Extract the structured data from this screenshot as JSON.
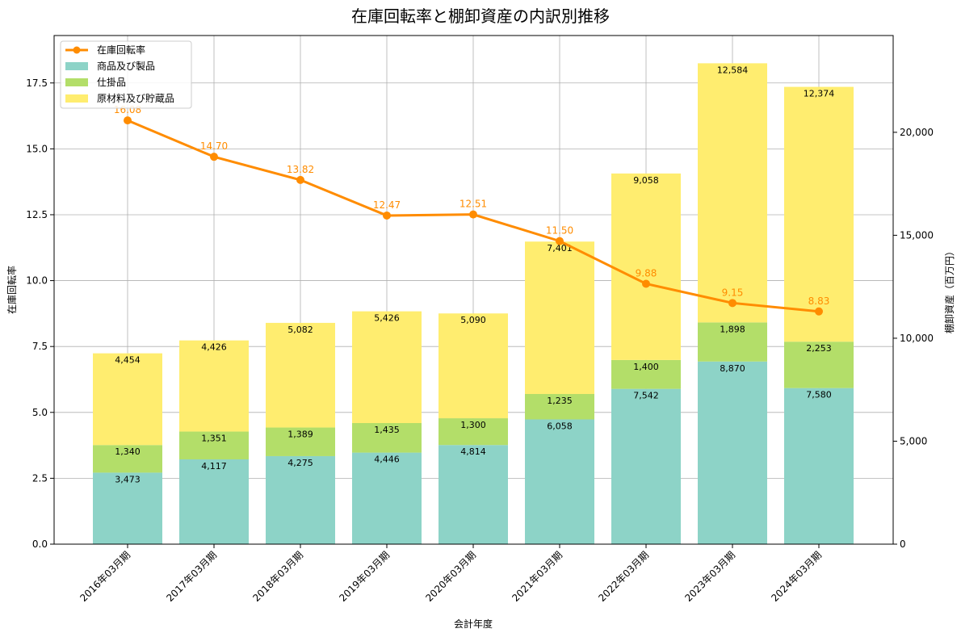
{
  "chart_data": {
    "type": "bar",
    "title": "在庫回転率と棚卸資産の内訳別推移",
    "xlabel": "会計年度",
    "ylabel_left": "在庫回転率",
    "ylabel_right": "棚卸資産（百万円）",
    "categories": [
      "2016年03月期",
      "2017年03月期",
      "2018年03月期",
      "2019年03月期",
      "2020年03月期",
      "2021年03月期",
      "2022年03月期",
      "2023年03月期",
      "2024年03月期"
    ],
    "stacked_series": [
      {
        "name": "商品及び製品",
        "color": "#8dd3c7",
        "values": [
          3473,
          4117,
          4275,
          4446,
          4814,
          6058,
          7542,
          8870,
          7580
        ]
      },
      {
        "name": "仕掛品",
        "color": "#b3de69",
        "values": [
          1340,
          1351,
          1389,
          1435,
          1300,
          1235,
          1400,
          1898,
          2253
        ]
      },
      {
        "name": "原材料及び貯蔵品",
        "color": "#ffed6f",
        "values": [
          4454,
          4426,
          5082,
          5426,
          5090,
          7401,
          9058,
          12584,
          12374
        ]
      }
    ],
    "line_series": {
      "name": "在庫回転率",
      "color": "#ff8c00",
      "values": [
        16.08,
        14.7,
        13.82,
        12.47,
        12.51,
        11.5,
        9.88,
        9.15,
        8.83
      ]
    },
    "left_axis": {
      "ylim": [
        0,
        19.3
      ],
      "ticks": [
        0.0,
        2.5,
        5.0,
        7.5,
        10.0,
        12.5,
        15.0,
        17.5
      ],
      "tick_labels": [
        "0.0",
        "2.5",
        "5.0",
        "7.5",
        "10.0",
        "12.5",
        "15.0",
        "17.5"
      ]
    },
    "right_axis": {
      "ylim": [
        0,
        24700
      ],
      "ticks": [
        0,
        5000,
        10000,
        15000,
        20000
      ],
      "tick_labels": [
        "0",
        "5,000",
        "10,000",
        "15,000",
        "20,000"
      ]
    },
    "legend_items": [
      "在庫回転率",
      "商品及び製品",
      "仕掛品",
      "原材料及び貯蔵品"
    ],
    "legend_placement": "top-left",
    "grid": true
  }
}
